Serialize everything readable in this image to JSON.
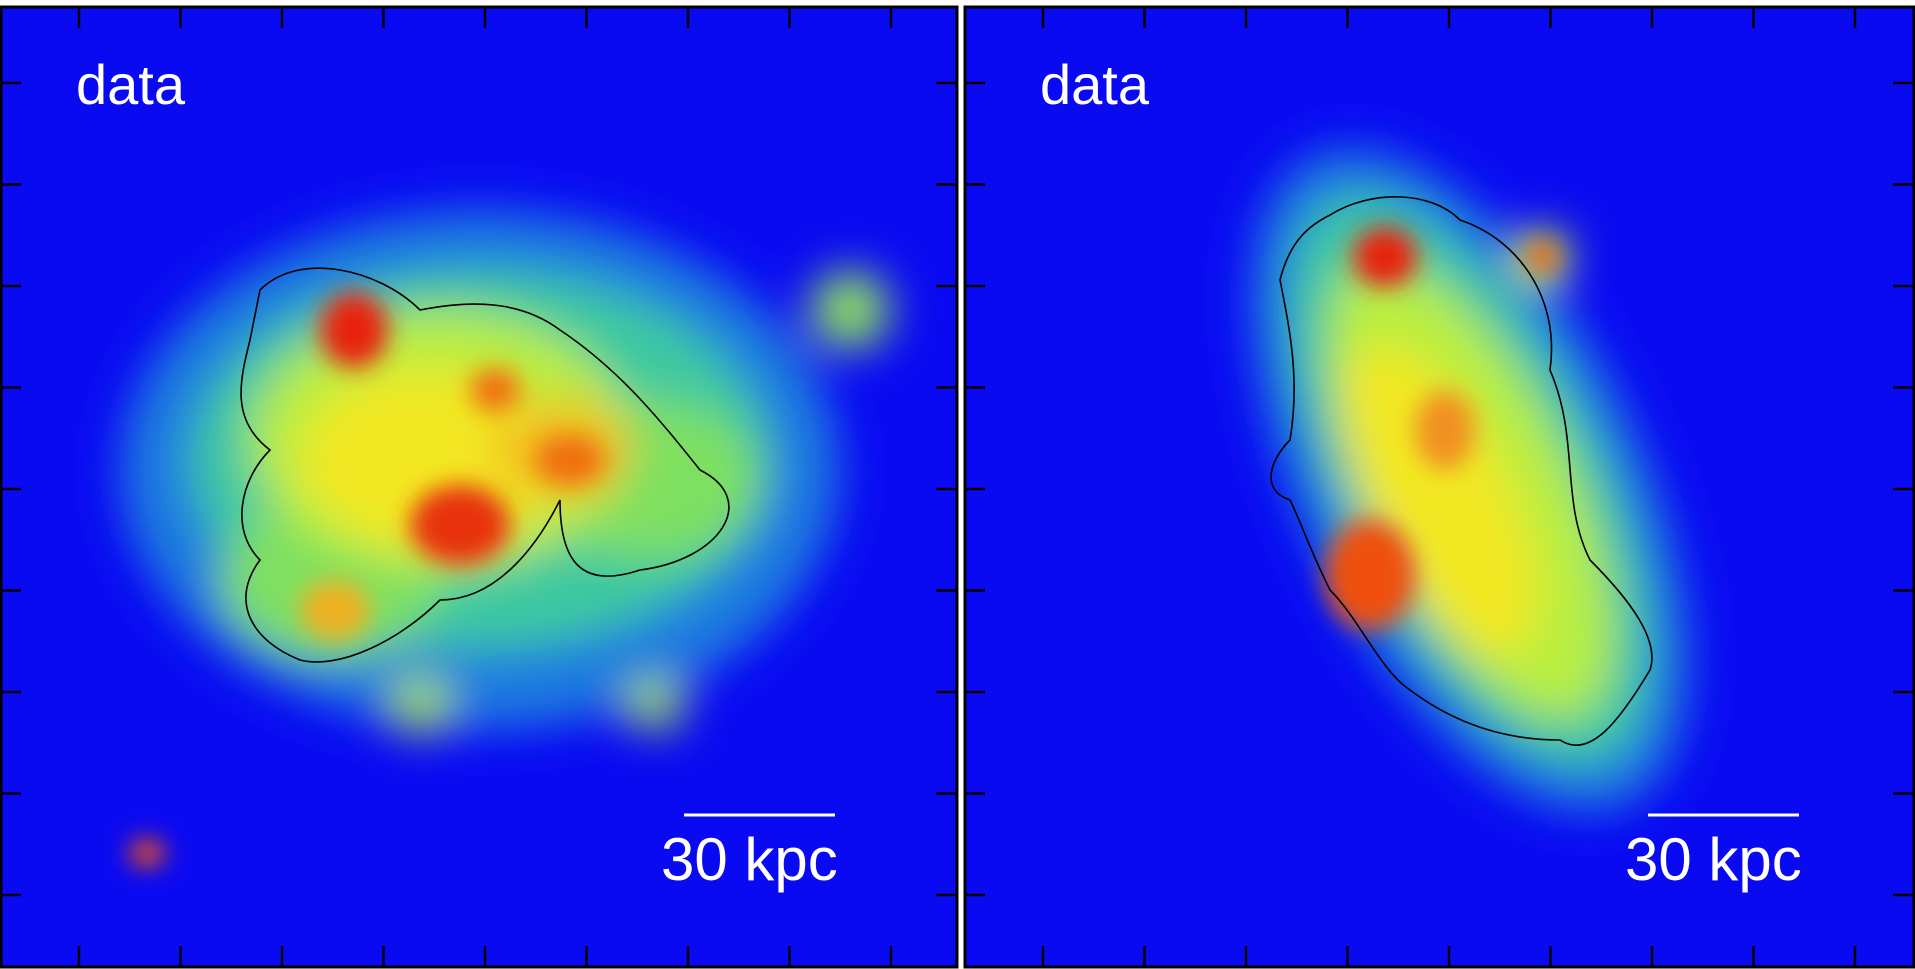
{
  "panels": [
    {
      "label": "data",
      "scale_bar": "30 kpc"
    },
    {
      "label": "data",
      "scale_bar": "30 kpc"
    }
  ]
}
